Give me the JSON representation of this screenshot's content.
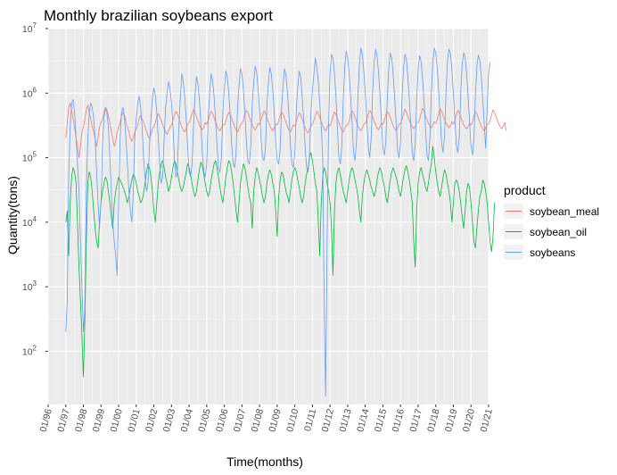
{
  "chart_data": {
    "type": "line",
    "title": "Monthly brazilian soybeans export",
    "xlabel": "Time(months)",
    "ylabel": "Quantity(tons)",
    "y_scale": "log10",
    "ylim": [
      15,
      10000000
    ],
    "x_range": [
      "01/96",
      "01/21"
    ],
    "grid": true,
    "legend_position": "right",
    "legend_title": "product",
    "x_tick_labels": [
      "01/96",
      "01/97",
      "01/98",
      "01/99",
      "01/00",
      "01/01",
      "01/02",
      "01/03",
      "01/04",
      "01/05",
      "01/06",
      "01/07",
      "01/08",
      "01/09",
      "01/10",
      "01/11",
      "01/12",
      "01/13",
      "01/14",
      "01/15",
      "01/16",
      "01/17",
      "01/18",
      "01/19",
      "01/20",
      "01/21"
    ],
    "y_ticks": [
      {
        "base": "10",
        "exp": "2",
        "value": 100
      },
      {
        "base": "10",
        "exp": "3",
        "value": 1000
      },
      {
        "base": "10",
        "exp": "4",
        "value": 10000
      },
      {
        "base": "10",
        "exp": "5",
        "value": 100000
      },
      {
        "base": "10",
        "exp": "6",
        "value": 1000000
      },
      {
        "base": "10",
        "exp": "7",
        "value": 10000000
      }
    ],
    "x_start": "1997-01",
    "series": [
      {
        "name": "soybean_meal",
        "color": "#F8766D",
        "values": [
          200000,
          350000,
          600000,
          700000,
          550000,
          400000,
          300000,
          200000,
          150000,
          100000,
          150000,
          250000,
          300000,
          400000,
          550000,
          650000,
          500000,
          400000,
          300000,
          250000,
          200000,
          150000,
          200000,
          300000,
          350000,
          400000,
          500000,
          600000,
          550000,
          450000,
          350000,
          250000,
          200000,
          150000,
          180000,
          250000,
          300000,
          350000,
          450000,
          500000,
          450000,
          350000,
          300000,
          250000,
          200000,
          180000,
          200000,
          250000,
          280000,
          320000,
          400000,
          450000,
          400000,
          350000,
          300000,
          250000,
          220000,
          200000,
          230000,
          280000,
          300000,
          350000,
          420000,
          480000,
          430000,
          380000,
          320000,
          280000,
          250000,
          230000,
          260000,
          300000,
          320000,
          380000,
          460000,
          520000,
          480000,
          410000,
          350000,
          300000,
          270000,
          250000,
          280000,
          330000,
          350000,
          400000,
          480000,
          550000,
          500000,
          430000,
          370000,
          320000,
          290000,
          270000,
          300000,
          350000,
          330000,
          380000,
          450000,
          520000,
          480000,
          420000,
          360000,
          310000,
          280000,
          260000,
          290000,
          330000,
          320000,
          370000,
          440000,
          500000,
          470000,
          410000,
          350000,
          300000,
          270000,
          250000,
          280000,
          320000,
          340000,
          390000,
          470000,
          540000,
          500000,
          430000,
          370000,
          320000,
          290000,
          270000,
          300000,
          340000,
          330000,
          380000,
          460000,
          530000,
          490000,
          420000,
          360000,
          310000,
          280000,
          260000,
          290000,
          330000,
          320000,
          370000,
          450000,
          510000,
          470000,
          410000,
          350000,
          300000,
          270000,
          250000,
          280000,
          320000,
          310000,
          360000,
          430000,
          500000,
          460000,
          400000,
          340000,
          290000,
          260000,
          240000,
          270000,
          310000,
          330000,
          380000,
          450000,
          520000,
          480000,
          420000,
          360000,
          310000,
          280000,
          260000,
          290000,
          330000,
          310000,
          360000,
          440000,
          510000,
          470000,
          410000,
          350000,
          300000,
          270000,
          250000,
          280000,
          320000,
          320000,
          370000,
          460000,
          530000,
          490000,
          420000,
          360000,
          310000,
          280000,
          260000,
          290000,
          330000,
          340000,
          390000,
          470000,
          540000,
          500000,
          430000,
          370000,
          320000,
          290000,
          270000,
          300000,
          340000,
          330000,
          380000,
          460000,
          520000,
          480000,
          420000,
          360000,
          310000,
          280000,
          260000,
          290000,
          330000,
          340000,
          390000,
          480000,
          560000,
          510000,
          440000,
          380000,
          330000,
          300000,
          280000,
          310000,
          350000,
          350000,
          400000,
          490000,
          580000,
          530000,
          450000,
          390000,
          340000,
          310000,
          290000,
          320000,
          360000,
          340000,
          400000,
          480000,
          570000,
          520000,
          450000,
          390000,
          340000,
          310000,
          290000,
          320000,
          360000,
          330000,
          380000,
          460000,
          540000,
          500000,
          430000,
          370000,
          320000,
          300000,
          280000,
          300000,
          340000,
          320000,
          360000,
          440000,
          520000,
          480000,
          410000,
          350000,
          310000,
          280000,
          260000,
          290000,
          330000,
          330000,
          380000,
          460000,
          550000,
          510000,
          440000,
          380000,
          330000,
          300000,
          280000,
          310000,
          350000,
          260000
        ]
      },
      {
        "name": "soybean_oil",
        "color": "#00BA38",
        "values": [
          10000,
          15000,
          3000,
          20000,
          50000,
          70000,
          60000,
          40000,
          10000,
          2000,
          600,
          180,
          40,
          300,
          5000,
          40000,
          60000,
          50000,
          30000,
          15000,
          8000,
          5000,
          4000,
          10000,
          20000,
          30000,
          40000,
          50000,
          45000,
          30000,
          20000,
          12000,
          8000,
          20000,
          30000,
          40000,
          50000,
          45000,
          40000,
          35000,
          30000,
          25000,
          20000,
          25000,
          35000,
          45000,
          55000,
          50000,
          40000,
          30000,
          25000,
          20000,
          22000,
          28000,
          40000,
          60000,
          80000,
          70000,
          50000,
          30000,
          15000,
          10000,
          20000,
          40000,
          60000,
          80000,
          90000,
          70000,
          50000,
          40000,
          30000,
          35000,
          50000,
          70000,
          90000,
          80000,
          60000,
          45000,
          35000,
          30000,
          35000,
          45000,
          60000,
          80000,
          70000,
          55000,
          40000,
          30000,
          25000,
          30000,
          45000,
          65000,
          85000,
          75000,
          55000,
          40000,
          30000,
          25000,
          30000,
          45000,
          60000,
          80000,
          90000,
          70000,
          50000,
          35000,
          25000,
          20000,
          30000,
          50000,
          70000,
          90000,
          80000,
          60000,
          40000,
          25000,
          15000,
          10000,
          20000,
          40000,
          60000,
          80000,
          70000,
          50000,
          35000,
          25000,
          20000,
          8000,
          30000,
          50000,
          70000,
          60000,
          45000,
          35000,
          25000,
          20000,
          25000,
          40000,
          55000,
          65000,
          55000,
          40000,
          30000,
          15000,
          6000,
          25000,
          45000,
          60000,
          55000,
          40000,
          30000,
          25000,
          20000,
          30000,
          45000,
          60000,
          70000,
          60000,
          45000,
          35000,
          25000,
          20000,
          25000,
          40000,
          55000,
          70000,
          100000,
          120000,
          90000,
          60000,
          40000,
          30000,
          10000,
          3000,
          20000,
          50000,
          70000,
          60000,
          40000,
          30000,
          20000,
          8000,
          1500,
          15000,
          40000,
          60000,
          70000,
          55000,
          40000,
          30000,
          25000,
          20000,
          30000,
          45000,
          60000,
          70000,
          60000,
          45000,
          35000,
          25000,
          15000,
          10000,
          25000,
          40000,
          55000,
          65000,
          55000,
          45000,
          35000,
          30000,
          25000,
          30000,
          45000,
          60000,
          70000,
          60000,
          45000,
          35000,
          25000,
          20000,
          30000,
          45000,
          60000,
          70000,
          60000,
          50000,
          40000,
          30000,
          25000,
          35000,
          50000,
          65000,
          75000,
          60000,
          45000,
          30000,
          20000,
          5000,
          2000,
          15000,
          40000,
          60000,
          70000,
          55000,
          45000,
          35000,
          30000,
          40000,
          60000,
          80000,
          150000,
          100000,
          60000,
          40000,
          30000,
          25000,
          35000,
          50000,
          65000,
          55000,
          40000,
          30000,
          20000,
          10000,
          20000,
          40000,
          45000,
          40000,
          30000,
          20000,
          12000,
          8000,
          15000,
          30000,
          40000,
          35000,
          20000,
          10000,
          5000,
          4000,
          8000,
          15000,
          25000,
          30000,
          45000,
          40000,
          30000,
          20000,
          10000,
          5000,
          3500,
          6000,
          20000
        ]
      },
      {
        "name": "soybeans",
        "color": "#619CFF",
        "values": [
          200,
          600,
          50000,
          300000,
          700000,
          800000,
          500000,
          200000,
          80000,
          30000,
          5000,
          1000,
          200,
          500,
          30000,
          200000,
          500000,
          700000,
          600000,
          400000,
          200000,
          60000,
          20000,
          8000,
          20000,
          150000,
          400000,
          600000,
          500000,
          300000,
          100000,
          30000,
          10000,
          5000,
          3000,
          1500,
          20000,
          200000,
          500000,
          600000,
          400000,
          200000,
          80000,
          30000,
          15000,
          10000,
          30000,
          200000,
          400000,
          700000,
          900000,
          600000,
          300000,
          100000,
          50000,
          30000,
          40000,
          150000,
          400000,
          800000,
          1200000,
          900000,
          500000,
          200000,
          80000,
          40000,
          50000,
          200000,
          600000,
          1000000,
          1500000,
          1200000,
          700000,
          300000,
          100000,
          50000,
          60000,
          300000,
          800000,
          2000000,
          1500000,
          900000,
          400000,
          150000,
          60000,
          50000,
          80000,
          300000,
          900000,
          1800000,
          1400000,
          800000,
          350000,
          120000,
          60000,
          50000,
          80000,
          400000,
          1000000,
          2000000,
          1600000,
          900000,
          400000,
          150000,
          70000,
          60000,
          100000,
          500000,
          1200000,
          2200000,
          1800000,
          1000000,
          450000,
          160000,
          80000,
          70000,
          120000,
          600000,
          1300000,
          2400000,
          2000000,
          1100000,
          500000,
          180000,
          90000,
          80000,
          150000,
          700000,
          1500000,
          2600000,
          2100000,
          1200000,
          550000,
          200000,
          100000,
          90000,
          140000,
          650000,
          1400000,
          2500000,
          2000000,
          1100000,
          500000,
          180000,
          90000,
          80000,
          130000,
          600000,
          1300000,
          2400000,
          1900000,
          1000000,
          450000,
          160000,
          80000,
          70000,
          120000,
          550000,
          1200000,
          2200000,
          1800000,
          900000,
          400000,
          150000,
          70000,
          60000,
          110000,
          500000,
          1100000,
          2000000,
          3500000,
          2500000,
          1500000,
          700000,
          300000,
          100000,
          600,
          20,
          5000,
          300000,
          2000000,
          4000000,
          3500000,
          2000000,
          900000,
          300000,
          100000,
          80000,
          150000,
          800000,
          2500000,
          4500000,
          3500000,
          2000000,
          900000,
          350000,
          120000,
          90000,
          180000,
          900000,
          2800000,
          5000000,
          4000000,
          2200000,
          1000000,
          400000,
          150000,
          100000,
          200000,
          1000000,
          3000000,
          4800000,
          3800000,
          2100000,
          950000,
          380000,
          140000,
          110000,
          180000,
          850000,
          2500000,
          4200000,
          3500000,
          1900000,
          850000,
          350000,
          130000,
          100000,
          170000,
          800000,
          2400000,
          4000000,
          3300000,
          1800000,
          800000,
          320000,
          120000,
          90000,
          160000,
          750000,
          2300000,
          3800000,
          3100000,
          1700000,
          750000,
          300000,
          110000,
          90000,
          200000,
          1000000,
          3000000,
          5000000,
          4200000,
          2400000,
          1100000,
          450000,
          170000,
          120000,
          220000,
          1100000,
          3200000,
          4800000,
          4000000,
          2300000,
          1000000,
          400000,
          160000,
          120000,
          200000,
          1000000,
          2800000,
          4200000,
          3600000,
          2000000,
          900000,
          380000,
          150000,
          110000,
          190000,
          900000,
          2600000,
          3900000,
          3200000,
          1800000,
          800000,
          340000,
          140000,
          600000,
          2000000,
          3000000
        ]
      }
    ]
  }
}
